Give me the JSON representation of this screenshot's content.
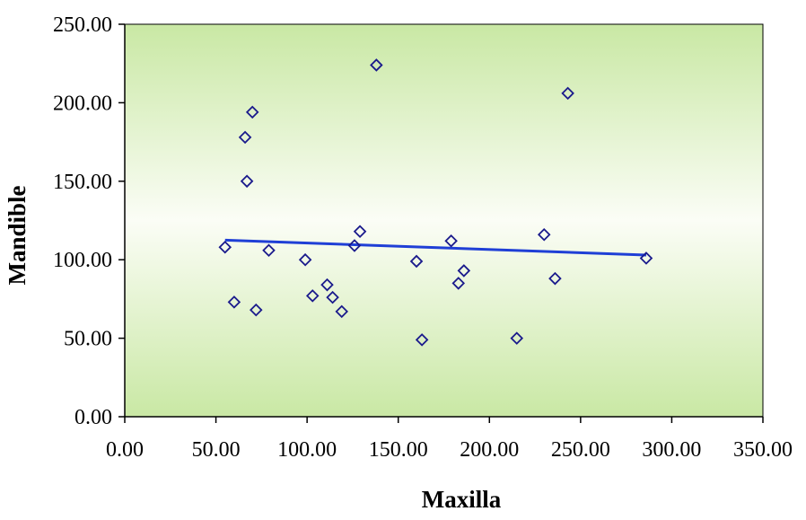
{
  "chart_data": {
    "type": "scatter",
    "xlabel": "Maxilla",
    "ylabel": "Mandible",
    "xlim": [
      0,
      350
    ],
    "ylim": [
      0,
      250
    ],
    "x_ticks": [
      "0.00",
      "50.00",
      "100.00",
      "150.00",
      "200.00",
      "250.00",
      "300.00",
      "350.00"
    ],
    "y_ticks": [
      "0.00",
      "50.00",
      "100.00",
      "150.00",
      "200.00",
      "250.00"
    ],
    "grid": false,
    "background": "green-to-white gradient",
    "marker": "diamond",
    "marker_color": "#1a1a8c",
    "trendline": {
      "type": "linear",
      "color": "#1f3fd6",
      "x": [
        55.0,
        286.0
      ],
      "y": [
        112.5,
        103.0
      ]
    },
    "points": [
      {
        "x": 55.0,
        "y": 108.0
      },
      {
        "x": 60.0,
        "y": 73.0
      },
      {
        "x": 66.0,
        "y": 178.0
      },
      {
        "x": 67.0,
        "y": 150.0
      },
      {
        "x": 70.0,
        "y": 194.0
      },
      {
        "x": 72.0,
        "y": 68.0
      },
      {
        "x": 79.0,
        "y": 106.0
      },
      {
        "x": 99.0,
        "y": 100.0
      },
      {
        "x": 103.0,
        "y": 77.0
      },
      {
        "x": 111.0,
        "y": 84.0
      },
      {
        "x": 114.0,
        "y": 76.0
      },
      {
        "x": 119.0,
        "y": 67.0
      },
      {
        "x": 126.0,
        "y": 109.0
      },
      {
        "x": 129.0,
        "y": 118.0
      },
      {
        "x": 138.0,
        "y": 224.0
      },
      {
        "x": 160.0,
        "y": 99.0
      },
      {
        "x": 163.0,
        "y": 49.0
      },
      {
        "x": 179.0,
        "y": 112.0
      },
      {
        "x": 183.0,
        "y": 85.0
      },
      {
        "x": 186.0,
        "y": 93.0
      },
      {
        "x": 215.0,
        "y": 50.0
      },
      {
        "x": 230.0,
        "y": 116.0
      },
      {
        "x": 236.0,
        "y": 88.0
      },
      {
        "x": 243.0,
        "y": 206.0
      },
      {
        "x": 286.0,
        "y": 101.0
      }
    ]
  }
}
